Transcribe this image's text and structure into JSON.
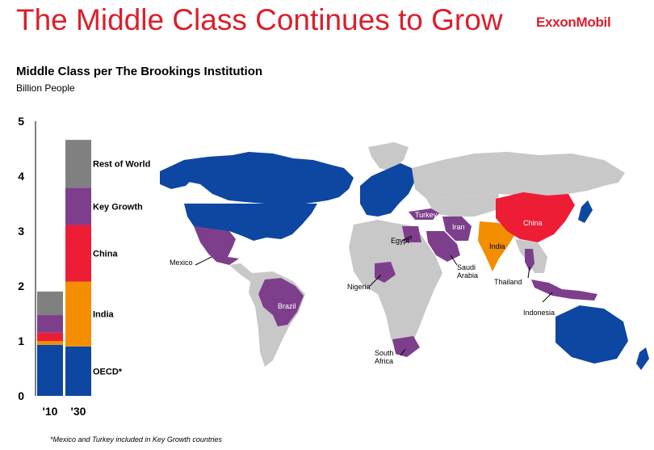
{
  "header": {
    "title": "The Middle Class Continues to Grow",
    "logo_text": "ExxonMobil"
  },
  "chart_data": {
    "type": "bar",
    "stacked": true,
    "title": "Middle Class per The Brookings Institution",
    "ylabel": "Billion People",
    "xlabel": "",
    "categories": [
      "'10",
      "'30"
    ],
    "ylim": [
      0,
      5
    ],
    "yticks": [
      "0",
      "1",
      "2",
      "3",
      "4",
      "5"
    ],
    "grid": false,
    "legend": "labels beside '30 bar",
    "series": [
      {
        "name": "OECD*",
        "values": [
          0.93,
          0.9
        ],
        "color": "#0d47a1"
      },
      {
        "name": "India",
        "values": [
          0.07,
          1.18
        ],
        "color": "#f28e00"
      },
      {
        "name": "China",
        "values": [
          0.15,
          1.03
        ],
        "color": "#ee1d36"
      },
      {
        "name": "Key Growth",
        "values": [
          0.32,
          0.68
        ],
        "color": "#7d3f8c"
      },
      {
        "name": "Rest of World",
        "values": [
          0.43,
          0.87
        ],
        "color": "#808080"
      }
    ]
  },
  "map": {
    "labels": [
      "China",
      "India",
      "Iran",
      "Turkey",
      "Egypt",
      "Saudi Arabia",
      "Nigeria",
      "Brazil",
      "Mexico",
      "South Africa",
      "Thailand",
      "Indonesia"
    ],
    "colors": {
      "oecd": "#0d47a1",
      "india": "#f28e00",
      "china": "#ee1d36",
      "key_growth": "#7d3f8c",
      "rest": "#c8c8c8"
    }
  },
  "footnote": "*Mexico and Turkey included in Key Growth countries"
}
